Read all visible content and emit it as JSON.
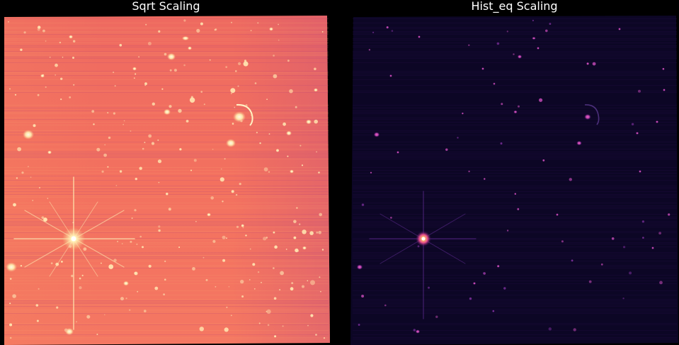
{
  "panels": [
    {
      "title": "Sqrt Scaling",
      "colormap": "magma",
      "background_color": "#f26f61",
      "star_color": "#fff6c8"
    },
    {
      "title": "Hist_eq Scaling",
      "colormap": "magma",
      "background_color": "#0c0623",
      "star_color": "#d84fc4"
    }
  ]
}
